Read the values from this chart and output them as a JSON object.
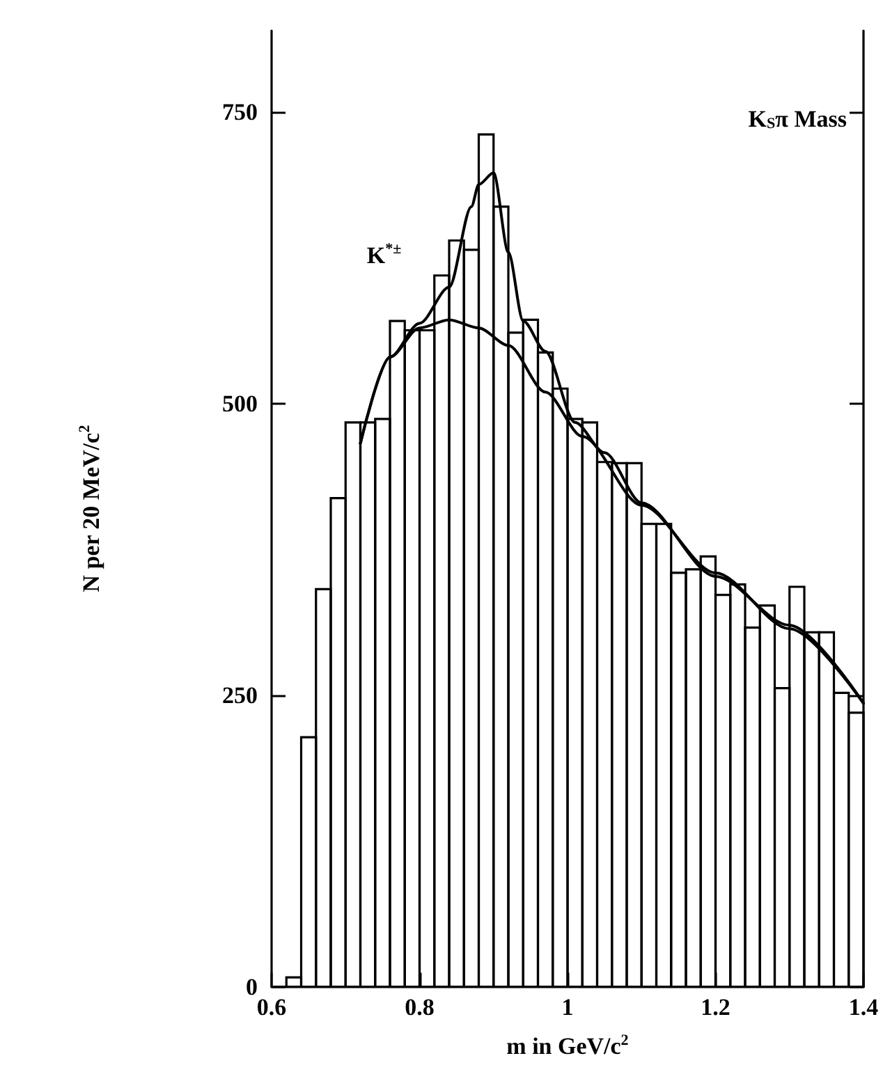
{
  "chart_data": {
    "type": "histogram",
    "xlabel": "m in GeV/c$^{2}$",
    "ylabel": "N per 20 MeV/c$^{2}$",
    "annotations": [
      "K$_{S}$π Mass",
      "K$^{*±}$"
    ],
    "xlim": [
      0.6,
      1.4
    ],
    "xticks": [
      0.6,
      0.8,
      1,
      1.2,
      1.4
    ],
    "ylim": [
      0,
      820
    ],
    "yticks": [
      0,
      250,
      500,
      750
    ],
    "grid": false,
    "marker": "none",
    "line_style": "solid",
    "series": [
      {
        "type": "histogram",
        "color": "#000000",
        "bins": [
          0.6,
          0.62,
          0.64,
          0.66,
          0.68,
          0.7,
          0.72,
          0.74,
          0.76,
          0.78,
          0.8,
          0.82,
          0.84,
          0.86,
          0.88,
          0.9,
          0.92,
          0.94,
          0.96,
          0.98,
          1.0,
          1.02,
          1.04,
          1.06,
          1.08,
          1.1,
          1.12,
          1.14,
          1.16,
          1.18,
          1.2,
          1.22,
          1.24,
          1.26,
          1.28,
          1.3,
          1.32,
          1.34,
          1.36,
          1.38,
          1.4
        ],
        "values": [
          0,
          8,
          214,
          341,
          419,
          484,
          484,
          487,
          571,
          563,
          563,
          610,
          640,
          632,
          731,
          669,
          561,
          572,
          544,
          513,
          487,
          484,
          450,
          449,
          449,
          397,
          397,
          355,
          358,
          369,
          336,
          345,
          308,
          327,
          256,
          343,
          304,
          304,
          252,
          235
        ]
      },
      {
        "type": "line",
        "color": "#000000",
        "x": [
          0.72,
          0.76,
          0.8,
          0.84,
          0.87,
          0.88,
          0.9,
          0.92,
          0.94,
          0.97,
          1.01,
          1.05,
          1.1,
          1.2,
          1.3,
          1.4
        ],
        "values": [
          466,
          540,
          569,
          600,
          669,
          688,
          698,
          630,
          571,
          545,
          484,
          458,
          415,
          352,
          310,
          243
        ]
      },
      {
        "type": "line",
        "color": "#000000",
        "x": [
          0.72,
          0.76,
          0.8,
          0.84,
          0.88,
          0.92,
          0.97,
          1.02,
          1.1,
          1.2,
          1.3,
          1.4
        ],
        "values": [
          466,
          540,
          565,
          572,
          565,
          550,
          510,
          472,
          413,
          355,
          307,
          243
        ]
      }
    ]
  }
}
